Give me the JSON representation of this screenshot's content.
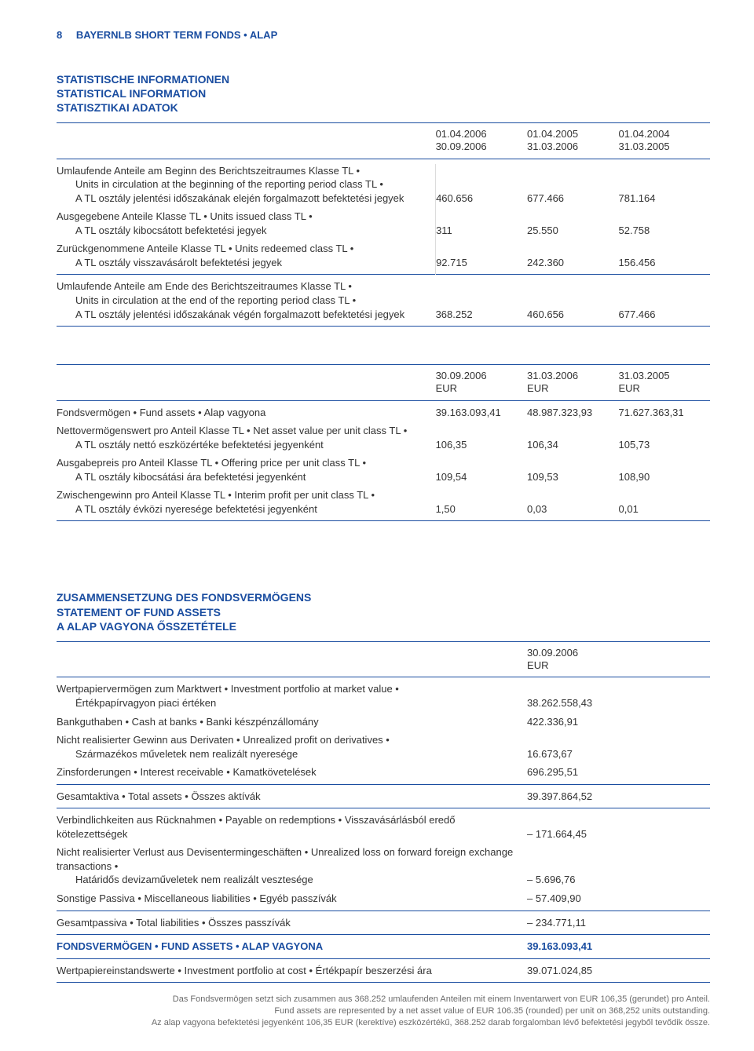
{
  "colors": {
    "brand": "#1a4da0",
    "text": "#333333",
    "rule": "#1a4da0",
    "vsep": "#dcdcdc",
    "footnote": "#6b6b6b",
    "background": "#ffffff"
  },
  "page_number": "8",
  "header_title": "BAYERNLB SHORT TERM FONDS • ALAP",
  "section1": {
    "title_de": "STATISTISCHE INFORMATIONEN",
    "title_en": "STATISTICAL INFORMATION",
    "title_hu": "STATISZTIKAI ADATOK",
    "periods": [
      {
        "top": "01.04.2006",
        "bot": "30.09.2006"
      },
      {
        "top": "01.04.2005",
        "bot": "31.03.2006"
      },
      {
        "top": "01.04.2004",
        "bot": "31.03.2005"
      }
    ],
    "rows": [
      {
        "l1": "Umlaufende Anteile am Beginn des Berichtszeitraumes Klasse TL •",
        "l2": "Units in circulation at the beginning of the reporting period class TL •",
        "l3": "A TL osztály jelentési időszakának elején forgalmazott befektetési jegyek",
        "v": [
          "460.656",
          "677.466",
          "781.164"
        ]
      },
      {
        "l1": "Ausgegebene Anteile Klasse TL • Units issued class TL •",
        "l3": "A TL osztály kibocsátott befektetési jegyek",
        "v": [
          "311",
          "25.550",
          "52.758"
        ]
      },
      {
        "l1": "Zurückgenommene Anteile Klasse TL • Units redeemed class TL •",
        "l3": "A TL osztály visszavásárolt befektetési jegyek",
        "v": [
          "92.715",
          "242.360",
          "156.456"
        ]
      },
      {
        "l1": "Umlaufende Anteile am Ende des Berichtszeitraumes Klasse TL •",
        "l2": "Units in circulation at the end of the reporting period class TL •",
        "l3": "A TL osztály jelentési időszakának végén forgalmazott befektetési jegyek",
        "v": [
          "368.252",
          "460.656",
          "677.466"
        ]
      }
    ]
  },
  "section2": {
    "headers": [
      {
        "top": "30.09.2006",
        "bot": "EUR"
      },
      {
        "top": "31.03.2006",
        "bot": "EUR"
      },
      {
        "top": "31.03.2005",
        "bot": "EUR"
      }
    ],
    "rows": [
      {
        "l1": "Fondsvermögen • Fund assets • Alap vagyona",
        "v": [
          "39.163.093,41",
          "48.987.323,93",
          "71.627.363,31"
        ]
      },
      {
        "l1": "Nettovermögenswert pro Anteil Klasse TL • Net asset value per unit class TL •",
        "l3": "A TL osztály nettó eszközértéke befektetési jegyenként",
        "v": [
          "106,35",
          "106,34",
          "105,73"
        ]
      },
      {
        "l1": "Ausgabepreis pro Anteil Klasse TL • Offering price per unit class TL •",
        "l3": "A TL osztály kibocsátási ára befektetési jegyenként",
        "v": [
          "109,54",
          "109,53",
          "108,90"
        ]
      },
      {
        "l1": "Zwischengewinn pro Anteil Klasse TL • Interim profit per unit class TL •",
        "l3": "A TL osztály évközi nyeresége befektetési jegyenként",
        "v": [
          "1,50",
          "0,03",
          "0,01"
        ]
      }
    ]
  },
  "section3": {
    "title_de": "ZUSAMMENSETZUNG DES FONDSVERMÖGENS",
    "title_en": "STATEMENT OF FUND ASSETS",
    "title_hu": "A ALAP VAGYONA ŐSSZETÉTELE",
    "header": {
      "top": "30.09.2006",
      "bot": "EUR"
    },
    "rows": [
      {
        "l1": "Wertpapiervermögen zum Marktwert • Investment portfolio at market value •",
        "l3": "Értékpapírvagyon piaci értéken",
        "v": "38.262.558,43"
      },
      {
        "l1": "Bankguthaben • Cash at banks • Banki készpénzállomány",
        "v": "422.336,91"
      },
      {
        "l1": "Nicht realisierter Gewinn aus Derivaten • Unrealized profit on derivatives •",
        "l3": "Származékos műveletek nem realizált nyeresége",
        "v": "16.673,67"
      },
      {
        "l1": "Zinsforderungen • Interest receivable • Kamatkövetelések",
        "v": "696.295,51"
      }
    ],
    "totalAssets": {
      "label": "Gesamtaktiva • Total assets • Összes aktívák",
      "v": "39.397.864,52"
    },
    "liabRows": [
      {
        "l1": "Verbindlichkeiten aus Rücknahmen • Payable on redemptions • Visszavásárlásból eredő kötelezettségek",
        "v": "171.664,45",
        "neg": true
      },
      {
        "l1": "Nicht realisierter Verlust aus Devisentermingeschäften • Unrealized loss on forward foreign exchange transactions •",
        "l3": "Határidős devizaműveletek nem realizált vesztesége",
        "v": "5.696,76",
        "neg": true
      },
      {
        "l1": "Sonstige Passiva • Miscellaneous liabilities • Egyéb passzívák",
        "v": "57.409,90",
        "neg": true
      }
    ],
    "totalLiab": {
      "label": "Gesamtpassiva • Total liabilities • Összes passzívák",
      "v": "234.771,11",
      "neg": true
    },
    "fundAssets": {
      "label": "FONDSVERMÖGEN • FUND ASSETS • ALAP VAGYONA",
      "v": "39.163.093,41"
    },
    "atCost": {
      "label": "Wertpapiereinstandswerte • Investment portfolio at cost • Értékpapír beszerzési ára",
      "v": "39.071.024,85"
    }
  },
  "footnotes": [
    "Das Fondsvermögen setzt sich zusammen aus 368.252 umlaufenden Anteilen mit einem Inventarwert von EUR 106,35 (gerundet) pro Anteil.",
    "Fund assets are represented by a net asset value of EUR 106.35 (rounded) per unit on 368,252 units outstanding.",
    "Az alap vagyona befektetési jegyenként 106,35 EUR (kerektíve) eszközértékű, 368.252 darab forgalomban lévő befektetési jegyből tevődik össze."
  ]
}
